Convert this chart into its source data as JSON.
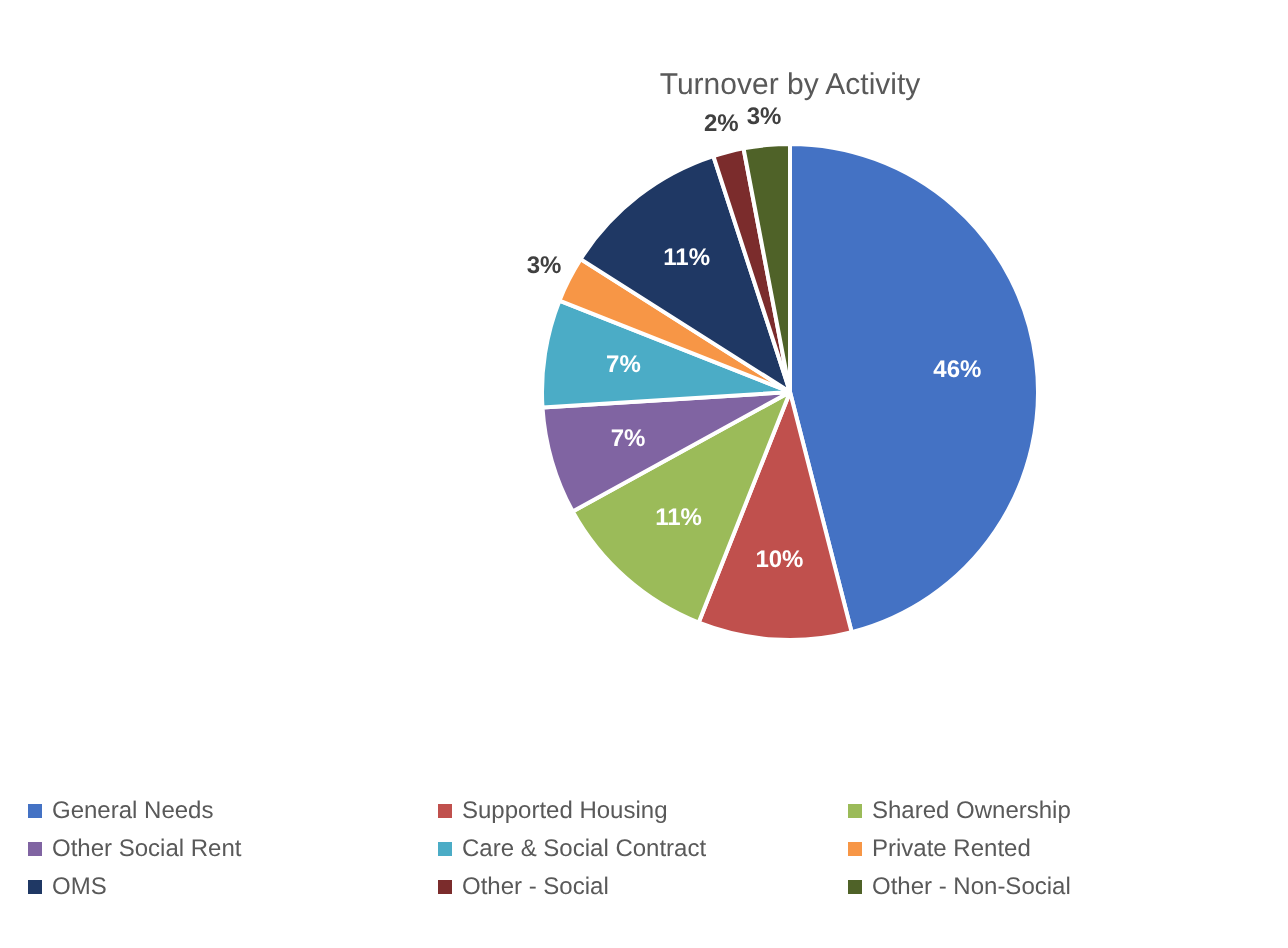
{
  "chart_data": {
    "type": "pie",
    "title": "Turnover by Activity",
    "categories": [
      "General Needs",
      "Supported Housing",
      "Shared Ownership",
      "Other Social Rent",
      "Care & Social Contract",
      "Private Rented",
      "OMS",
      "Other - Social",
      "Other - Non-Social"
    ],
    "values": [
      46,
      10,
      11,
      7,
      7,
      3,
      11,
      2,
      3
    ],
    "value_labels": [
      "46%",
      "10%",
      "11%",
      "7%",
      "7%",
      "3%",
      "11%",
      "2%",
      "3%"
    ],
    "colors": [
      "#4472c4",
      "#c0504d",
      "#9bbb59",
      "#8064a2",
      "#4bacc6",
      "#f79646",
      "#1f3864",
      "#7b2c2c",
      "#4f6228"
    ],
    "legend": "bottom"
  }
}
